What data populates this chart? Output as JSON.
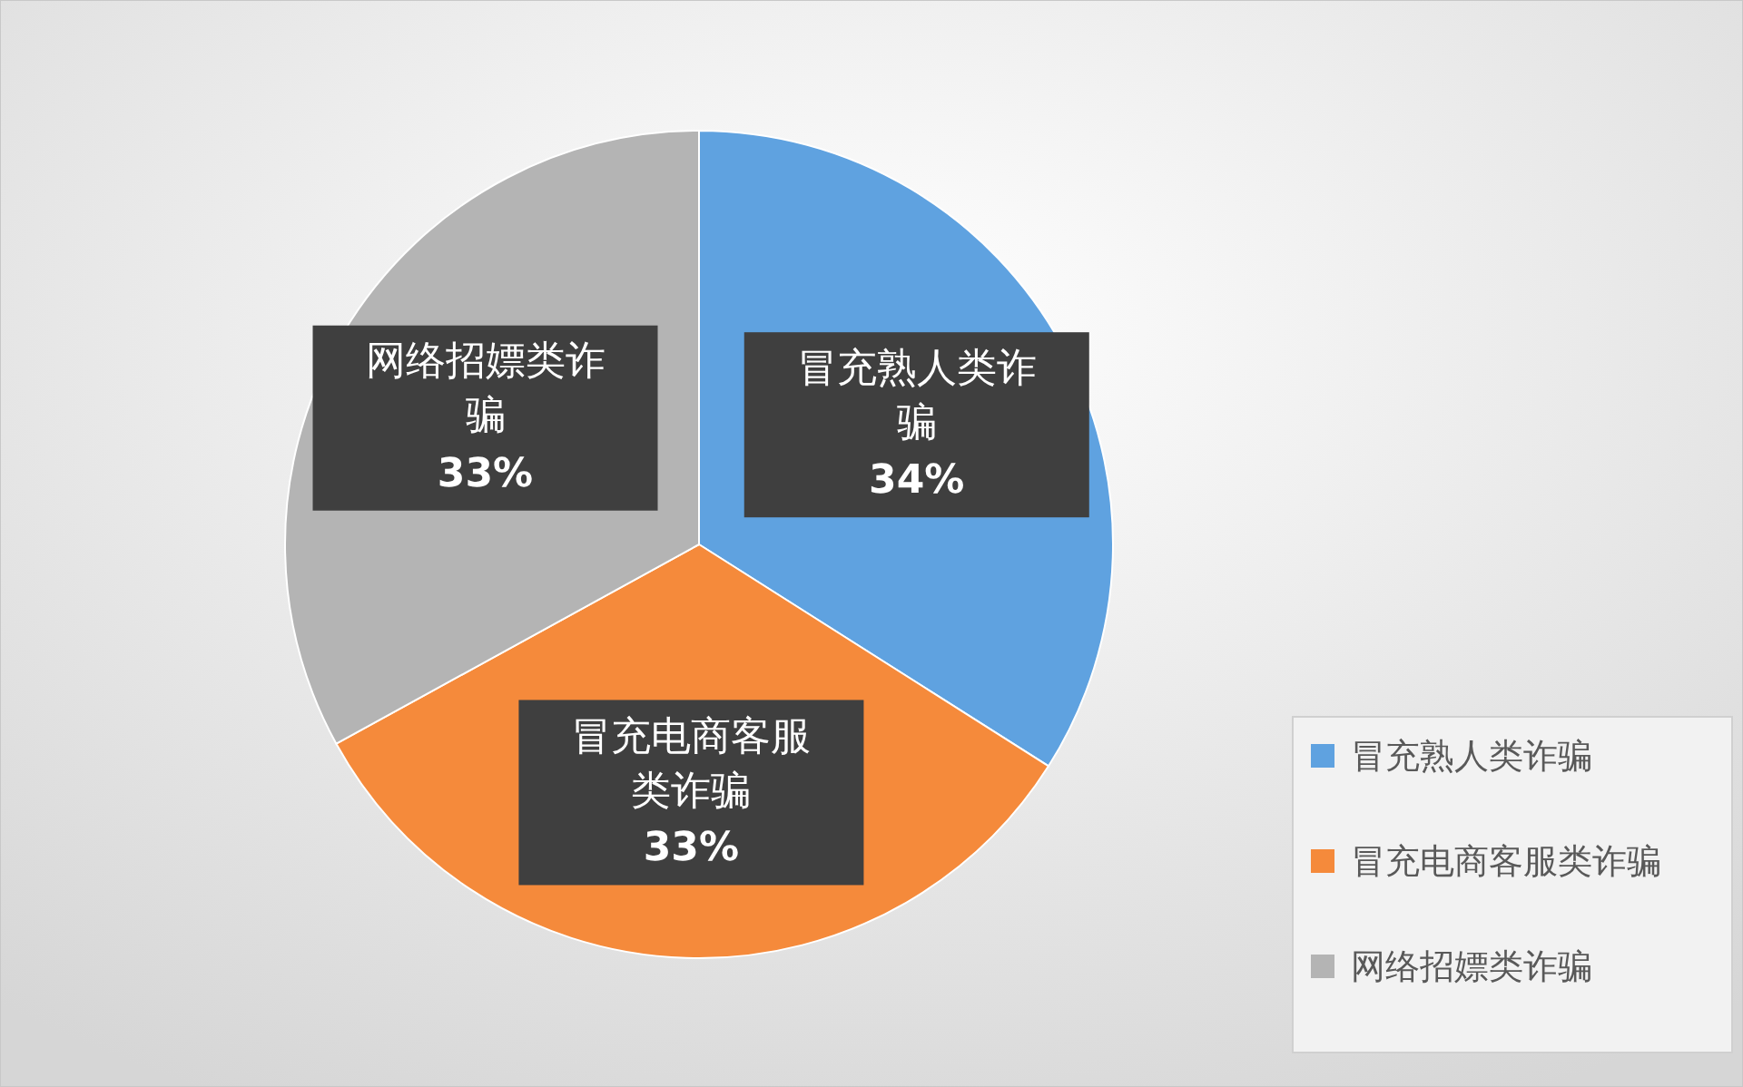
{
  "chart_data": {
    "type": "pie",
    "categories": [
      "冒充熟人类诈骗",
      "冒充电商客服类诈骗",
      "网络招嫖类诈骗"
    ],
    "values": [
      34,
      33,
      33
    ],
    "colors": [
      "#5fa2e0",
      "#f58a3b",
      "#b4b4b4"
    ],
    "value_labels": [
      "34%",
      "33%",
      "33%"
    ],
    "legend": "bottom right"
  }
}
